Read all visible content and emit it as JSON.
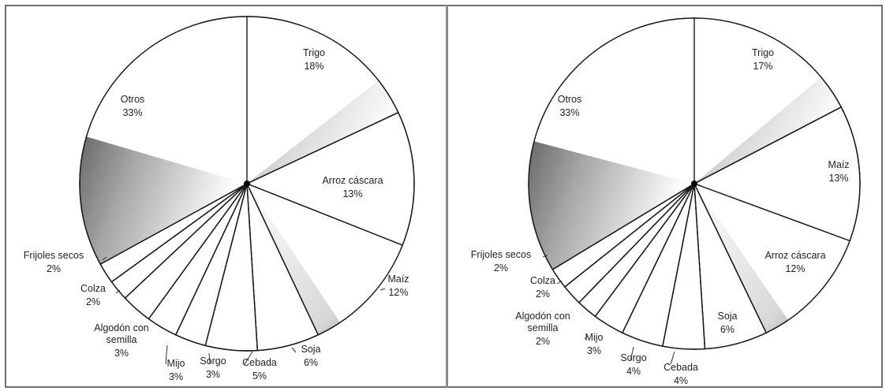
{
  "chart_data": [
    {
      "type": "pie",
      "slices": [
        {
          "label": "Trigo",
          "pct_label": "18%",
          "value": 18
        },
        {
          "label": "Arroz cáscara",
          "pct_label": "13%",
          "value": 13
        },
        {
          "label": "Maíz",
          "pct_label": "12%",
          "value": 12
        },
        {
          "label": "Soja",
          "pct_label": "6%",
          "value": 6
        },
        {
          "label": "Cebada",
          "pct_label": "5%",
          "value": 5
        },
        {
          "label": "Sorgo",
          "pct_label": "3%",
          "value": 3
        },
        {
          "label": "Mijo",
          "pct_label": "3%",
          "value": 3
        },
        {
          "label": "Algodón con semilla",
          "pct_label": "3%",
          "value": 3
        },
        {
          "label": "Colza",
          "pct_label": "2%",
          "value": 2
        },
        {
          "label": "Frijoles secos",
          "pct_label": "2%",
          "value": 2
        },
        {
          "label": "Otros",
          "pct_label": "33%",
          "value": 33
        }
      ]
    },
    {
      "type": "pie",
      "slices": [
        {
          "label": "Trigo",
          "pct_label": "17%",
          "value": 17
        },
        {
          "label": "Maíz",
          "pct_label": "13%",
          "value": 13
        },
        {
          "label": "Arroz cáscara",
          "pct_label": "12%",
          "value": 12
        },
        {
          "label": "Soja",
          "pct_label": "6%",
          "value": 6
        },
        {
          "label": "Cebada",
          "pct_label": "4%",
          "value": 4
        },
        {
          "label": "Sorgo",
          "pct_label": "4%",
          "value": 4
        },
        {
          "label": "Mijo",
          "pct_label": "3%",
          "value": 3
        },
        {
          "label": "Algodón con semilla",
          "pct_label": "2%",
          "value": 2
        },
        {
          "label": "Colza",
          "pct_label": "2%",
          "value": 2
        },
        {
          "label": "Frijoles secos",
          "pct_label": "2%",
          "value": 2
        },
        {
          "label": "Otros",
          "pct_label": "33%",
          "value": 33
        }
      ]
    }
  ]
}
